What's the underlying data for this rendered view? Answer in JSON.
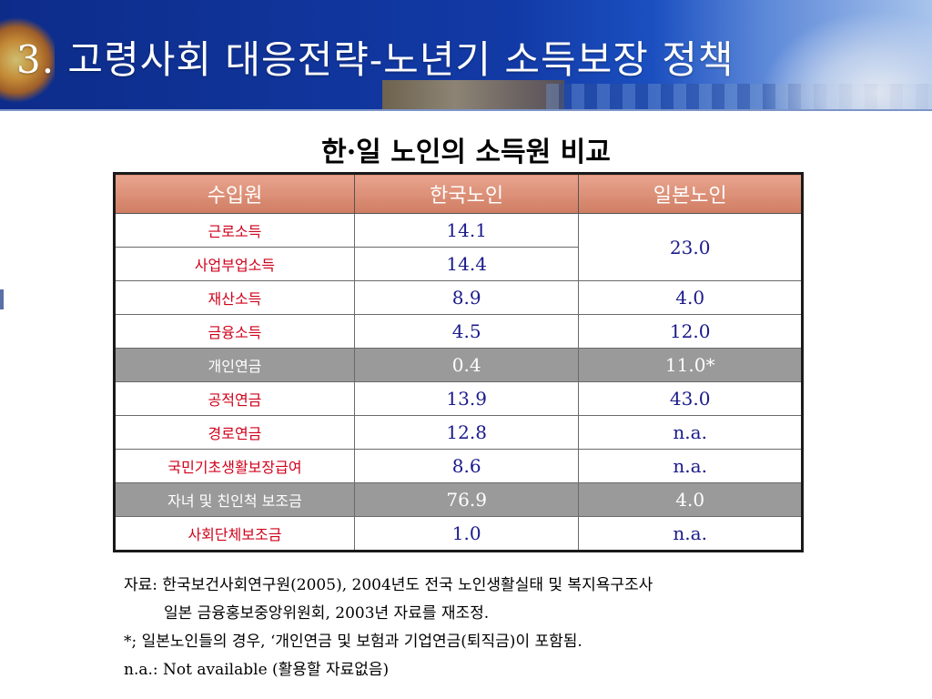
{
  "slide": {
    "title": "3. 고령사회 대응전략-노년기 소득보장 정책",
    "subtitle": "한·일 노인의 소득원 비교"
  },
  "table": {
    "headers": [
      "수입원",
      "한국노인",
      "일본노인"
    ],
    "rows": [
      {
        "source": "근로소득",
        "korea": "14.1",
        "japan": "23.0",
        "highlight": false
      },
      {
        "source": "사업부업소득",
        "korea": "14.4",
        "japan": "",
        "highlight": false
      },
      {
        "source": "재산소득",
        "korea": "8.9",
        "japan": "4.0",
        "highlight": false
      },
      {
        "source": "금융소득",
        "korea": "4.5",
        "japan": "12.0",
        "highlight": false
      },
      {
        "source": "개인연금",
        "korea": "0.4",
        "japan": "11.0*",
        "highlight": true
      },
      {
        "source": "공적연금",
        "korea": "13.9",
        "japan": "43.0",
        "highlight": false
      },
      {
        "source": "경로연금",
        "korea": "12.8",
        "japan": "n.a.",
        "highlight": false
      },
      {
        "source": "국민기초생활보장급여",
        "korea": "8.6",
        "japan": "n.a.",
        "highlight": false
      },
      {
        "source": "자녀 및 친인척 보조금",
        "korea": "76.9",
        "japan": "4.0",
        "highlight": true
      },
      {
        "source": "사회단체보조금",
        "korea": "1.0",
        "japan": "n.a.",
        "highlight": false
      }
    ]
  },
  "notes": [
    "자료: 한국보건사회연구원(2005), 2004년도 전국 노인생활실태 및 복지욕구조사",
    "일본 금융홍보중앙위원회, 2003년 자료를 재조정.",
    "*; 일본노인들의 경우, ‘개인연금 및 보험과 기업연금(퇴직금)이 포함됨.",
    "n.a.: Not available (활용할 자료없음)"
  ],
  "colors": {
    "header_bg": "#d8876b",
    "source_text": "#d0021b",
    "value_text": "#1a1a8c",
    "highlight_row": "#9a9a9a"
  }
}
